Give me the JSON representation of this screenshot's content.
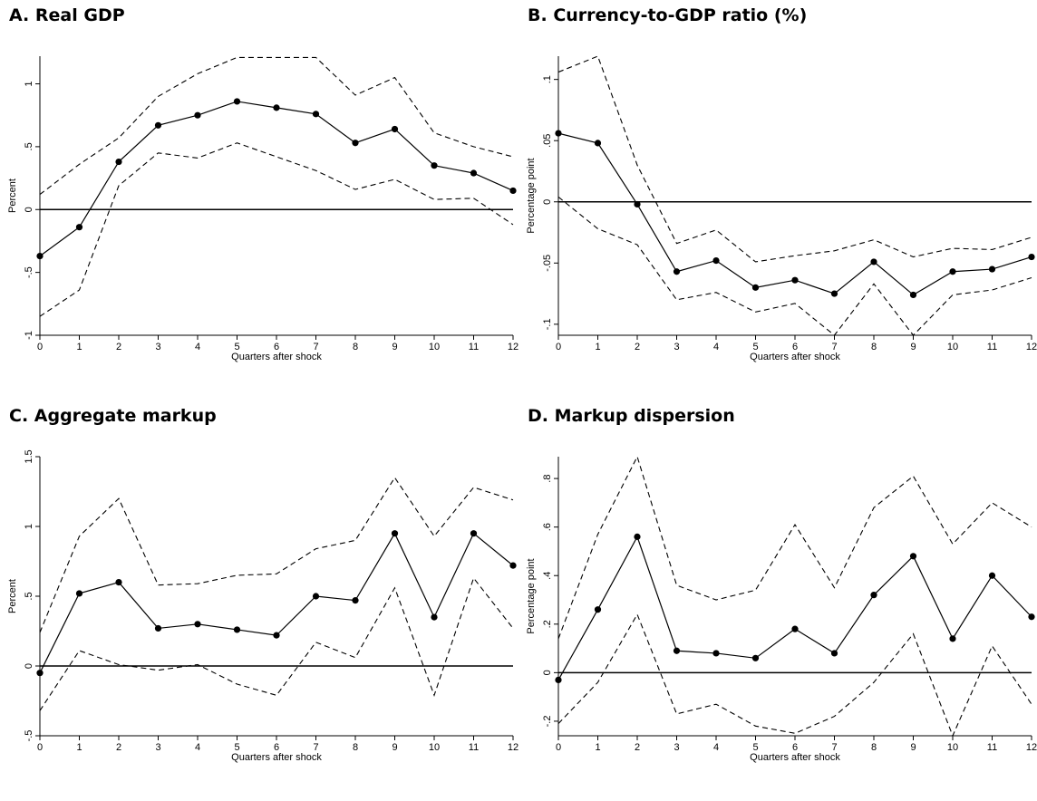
{
  "chart_data": [
    {
      "type": "line",
      "title": "A. Real GDP",
      "xlabel": "Quarters after shock",
      "ylabel": "Percent",
      "x": [
        0,
        1,
        2,
        3,
        4,
        5,
        6,
        7,
        8,
        9,
        10,
        11,
        12
      ],
      "xticks": [
        "0",
        "1",
        "2",
        "3",
        "4",
        "5",
        "6",
        "7",
        "8",
        "9",
        "10",
        "11",
        "12"
      ],
      "yticks": [
        -1,
        -0.5,
        0,
        0.5,
        1
      ],
      "ytick_labels": [
        "-1",
        "-.5",
        "0",
        ".5",
        "1"
      ],
      "ylim": [
        -1.0,
        1.22
      ],
      "xlim": [
        0,
        12
      ],
      "zero_line": true,
      "series": [
        {
          "role": "estimate",
          "style": "solid-markers",
          "values": [
            -0.37,
            -0.14,
            0.38,
            0.67,
            0.75,
            0.86,
            0.81,
            0.76,
            0.53,
            0.64,
            0.35,
            0.29,
            0.15
          ]
        },
        {
          "role": "upper",
          "style": "dashed",
          "values": [
            0.12,
            0.36,
            0.57,
            0.9,
            1.08,
            1.21,
            1.21,
            1.21,
            0.91,
            1.05,
            0.61,
            0.5,
            0.42
          ]
        },
        {
          "role": "lower",
          "style": "dashed",
          "values": [
            -0.85,
            -0.64,
            0.19,
            0.45,
            0.41,
            0.53,
            0.42,
            0.31,
            0.16,
            0.24,
            0.08,
            0.09,
            -0.12
          ]
        }
      ]
    },
    {
      "type": "line",
      "title": "B. Currency-to-GDP ratio (%)",
      "xlabel": "Quarters after shock",
      "ylabel": "Percentage point",
      "x": [
        0,
        1,
        2,
        3,
        4,
        5,
        6,
        7,
        8,
        9,
        10,
        11,
        12
      ],
      "xticks": [
        "0",
        "1",
        "2",
        "3",
        "4",
        "5",
        "6",
        "7",
        "8",
        "9",
        "10",
        "11",
        "12"
      ],
      "yticks": [
        -0.1,
        -0.05,
        0,
        0.05,
        0.1
      ],
      "ytick_labels": [
        "-.1",
        "-.05",
        "0",
        ".05",
        ".1"
      ],
      "ylim": [
        -0.109,
        0.119
      ],
      "xlim": [
        0,
        12
      ],
      "zero_line": true,
      "series": [
        {
          "role": "estimate",
          "style": "solid-markers",
          "values": [
            0.056,
            0.048,
            -0.002,
            -0.057,
            -0.048,
            -0.07,
            -0.064,
            -0.075,
            -0.049,
            -0.076,
            -0.057,
            -0.055,
            -0.045
          ]
        },
        {
          "role": "upper",
          "style": "dashed",
          "values": [
            0.106,
            0.119,
            0.03,
            -0.034,
            -0.023,
            -0.049,
            -0.044,
            -0.04,
            -0.031,
            -0.045,
            -0.038,
            -0.039,
            -0.029
          ]
        },
        {
          "role": "lower",
          "style": "dashed",
          "values": [
            0.004,
            -0.022,
            -0.035,
            -0.08,
            -0.074,
            -0.09,
            -0.083,
            -0.109,
            -0.067,
            -0.109,
            -0.076,
            -0.072,
            -0.062
          ]
        }
      ]
    },
    {
      "type": "line",
      "title": "C. Aggregate markup",
      "xlabel": "Quarters after shock",
      "ylabel": "Percent",
      "x": [
        0,
        1,
        2,
        3,
        4,
        5,
        6,
        7,
        8,
        9,
        10,
        11,
        12
      ],
      "xticks": [
        "0",
        "1",
        "2",
        "3",
        "4",
        "5",
        "6",
        "7",
        "8",
        "9",
        "10",
        "11",
        "12"
      ],
      "yticks": [
        -0.5,
        0,
        0.5,
        1,
        1.5
      ],
      "ytick_labels": [
        "-.5",
        "0",
        ".5",
        "1",
        "1.5"
      ],
      "ylim": [
        -0.5,
        1.5
      ],
      "xlim": [
        0,
        12
      ],
      "zero_line": true,
      "series": [
        {
          "role": "estimate",
          "style": "solid-markers",
          "values": [
            -0.05,
            0.52,
            0.6,
            0.27,
            0.3,
            0.26,
            0.22,
            0.5,
            0.47,
            0.95,
            0.35,
            0.95,
            0.72
          ]
        },
        {
          "role": "upper",
          "style": "dashed",
          "values": [
            0.24,
            0.93,
            1.2,
            0.58,
            0.59,
            0.65,
            0.66,
            0.84,
            0.9,
            1.35,
            0.93,
            1.28,
            1.19
          ]
        },
        {
          "role": "lower",
          "style": "dashed",
          "values": [
            -0.32,
            0.11,
            0.01,
            -0.03,
            0.01,
            -0.13,
            -0.21,
            0.17,
            0.06,
            0.56,
            -0.21,
            0.63,
            0.27
          ]
        }
      ]
    },
    {
      "type": "line",
      "title": "D. Markup dispersion",
      "xlabel": "Quarters after shock",
      "ylabel": "Percentage point",
      "x": [
        0,
        1,
        2,
        3,
        4,
        5,
        6,
        7,
        8,
        9,
        10,
        11,
        12
      ],
      "xticks": [
        "0",
        "1",
        "2",
        "3",
        "4",
        "5",
        "6",
        "7",
        "8",
        "9",
        "10",
        "11",
        "12"
      ],
      "yticks": [
        -0.2,
        0,
        0.2,
        0.4,
        0.6,
        0.8
      ],
      "ytick_labels": [
        "-.2",
        "0",
        ".2",
        ".4",
        ".6",
        ".8"
      ],
      "ylim": [
        -0.26,
        0.89
      ],
      "xlim": [
        0,
        12
      ],
      "zero_line": true,
      "series": [
        {
          "role": "estimate",
          "style": "solid-markers",
          "values": [
            -0.03,
            0.26,
            0.56,
            0.09,
            0.08,
            0.06,
            0.18,
            0.08,
            0.32,
            0.48,
            0.14,
            0.4,
            0.23
          ]
        },
        {
          "role": "upper",
          "style": "dashed",
          "values": [
            0.14,
            0.57,
            0.89,
            0.36,
            0.3,
            0.34,
            0.61,
            0.35,
            0.68,
            0.81,
            0.53,
            0.7,
            0.6
          ]
        },
        {
          "role": "lower",
          "style": "dashed",
          "values": [
            -0.21,
            -0.04,
            0.24,
            -0.17,
            -0.13,
            -0.22,
            -0.25,
            -0.18,
            -0.04,
            0.16,
            -0.26,
            0.11,
            -0.13
          ]
        }
      ]
    }
  ]
}
